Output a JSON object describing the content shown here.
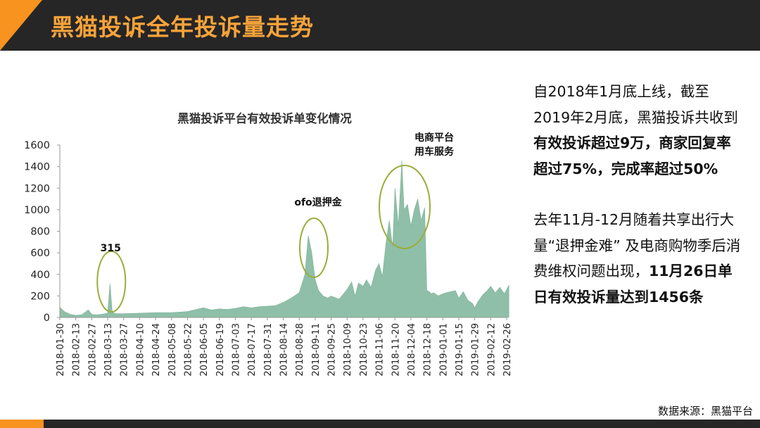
{
  "header": {
    "title": "黑猫投诉全年投诉量走势"
  },
  "colors": {
    "header_bg": "#262626",
    "accent": "#f7931e",
    "title": "#f7a33a",
    "area": "#8fbfa8",
    "circle": "#9aad3a"
  },
  "chart_data": {
    "type": "area",
    "title": "黑猫投诉平台有效投诉单变化情况",
    "xlabel": "",
    "ylabel": "",
    "ylim": [
      0,
      1600
    ],
    "yticks": [
      0,
      200,
      400,
      600,
      800,
      1000,
      1200,
      1400,
      1600
    ],
    "xticks": [
      "2018-01-30",
      "2018-02-13",
      "2018-02-27",
      "2018-03-13",
      "2018-03-27",
      "2018-04-10",
      "2018-04-24",
      "2018-05-08",
      "2018-05-22",
      "2018-06-05",
      "2018-06-19",
      "2018-07-03",
      "2018-07-17",
      "2018-07-31",
      "2018-08-14",
      "2018-08-28",
      "2018-09-11",
      "2018-09-25",
      "2018-10-09",
      "2018-10-23",
      "2018-11-06",
      "2018-11-20",
      "2018-12-04",
      "2018-12-18",
      "2019-01-01",
      "2019-01-15",
      "2019-01-29",
      "2019-02-12",
      "2019-02-26"
    ],
    "grid": false,
    "legend": "none",
    "series": [
      {
        "x": [
          "2018-01-30",
          "2018-02-03",
          "2018-02-08",
          "2018-02-13",
          "2018-02-18",
          "2018-02-24",
          "2018-02-27",
          "2018-03-03",
          "2018-03-08",
          "2018-03-13",
          "2018-03-15",
          "2018-03-17",
          "2018-03-20",
          "2018-03-27",
          "2018-04-10",
          "2018-04-24",
          "2018-05-08",
          "2018-05-22",
          "2018-06-05",
          "2018-06-12",
          "2018-06-19",
          "2018-06-26",
          "2018-07-03",
          "2018-07-10",
          "2018-07-17",
          "2018-07-24",
          "2018-07-31",
          "2018-08-07",
          "2018-08-14",
          "2018-08-21",
          "2018-08-28",
          "2018-09-02",
          "2018-09-05",
          "2018-09-08",
          "2018-09-11",
          "2018-09-14",
          "2018-09-18",
          "2018-09-22",
          "2018-09-25",
          "2018-10-02",
          "2018-10-09",
          "2018-10-13",
          "2018-10-16",
          "2018-10-19",
          "2018-10-23",
          "2018-10-26",
          "2018-10-30",
          "2018-11-03",
          "2018-11-06",
          "2018-11-09",
          "2018-11-12",
          "2018-11-15",
          "2018-11-18",
          "2018-11-20",
          "2018-11-23",
          "2018-11-26",
          "2018-11-28",
          "2018-12-01",
          "2018-12-04",
          "2018-12-07",
          "2018-12-10",
          "2018-12-13",
          "2018-12-16",
          "2018-12-18",
          "2018-12-20",
          "2018-12-22",
          "2018-12-24",
          "2018-12-28",
          "2019-01-01",
          "2019-01-04",
          "2019-01-08",
          "2019-01-12",
          "2019-01-15",
          "2019-01-19",
          "2019-01-23",
          "2019-01-27",
          "2019-01-29",
          "2019-02-01",
          "2019-02-05",
          "2019-02-09",
          "2019-02-12",
          "2019-02-16",
          "2019-02-20",
          "2019-02-24",
          "2019-02-28"
        ],
        "values": [
          95,
          55,
          30,
          20,
          25,
          70,
          30,
          25,
          30,
          40,
          315,
          50,
          35,
          35,
          40,
          45,
          45,
          55,
          90,
          70,
          80,
          75,
          85,
          100,
          90,
          100,
          105,
          110,
          140,
          180,
          230,
          400,
          760,
          600,
          350,
          250,
          200,
          180,
          200,
          170,
          260,
          330,
          200,
          320,
          290,
          350,
          280,
          440,
          500,
          380,
          680,
          900,
          650,
          1200,
          850,
          1456,
          1000,
          1050,
          850,
          1000,
          1100,
          900,
          1020,
          250,
          240,
          220,
          230,
          200,
          220,
          230,
          240,
          250,
          180,
          240,
          160,
          130,
          90,
          150,
          210,
          250,
          290,
          230,
          280,
          220,
          300
        ]
      }
    ],
    "annotations": [
      {
        "label": "315",
        "x": "2018-03-15"
      },
      {
        "label": "ofo退押金",
        "x": "2018-09-05"
      },
      {
        "label": "电商平台用车服务",
        "x": "2018-11-26"
      }
    ]
  },
  "side_text": {
    "p1_plain": "自2018年1月底上线，截至2019年2月底，黑猫投诉共收到",
    "p1_bold": "有效投诉超过9万，商家回复率超过75%，完成率超过50%",
    "p2_plain": "去年11月-12月随着共享出行大量“退押金难” 及电商购物季后消费维权问题出现，",
    "p2_bold": "11月26日单日有效投诉量达到1456条"
  },
  "source": "数据来源：黑猫平台"
}
